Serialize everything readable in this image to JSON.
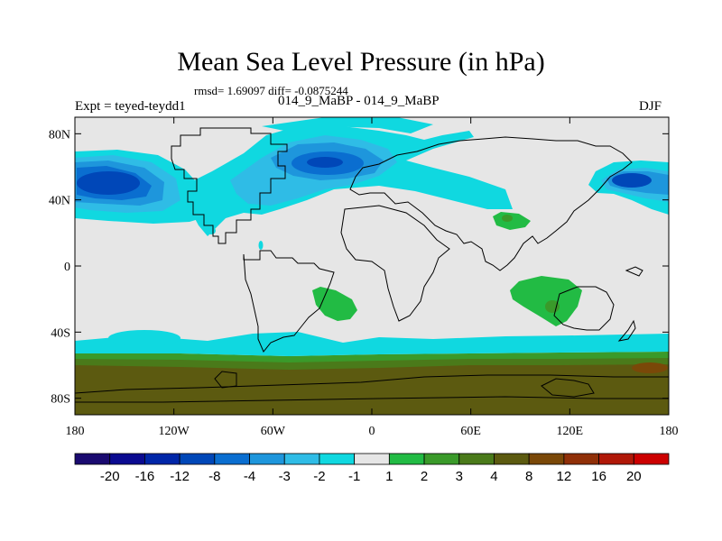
{
  "header": {
    "title": "Mean Sea Level Pressure (in hPa)",
    "stats": "rmsd= 1.69097 diff= -0.0875244",
    "experiment": "Expt = teyed-teydd1",
    "runs": "014_9_MaBP - 014_9_MaBP",
    "season": "DJF"
  },
  "chart_data": {
    "type": "heatmap",
    "title": "Mean Sea Level Pressure (in hPa)",
    "variable": "Mean sea level pressure difference",
    "units": "hPa",
    "projection": "cylindrical equidistant",
    "xlim": [
      -180,
      180
    ],
    "ylim": [
      -90,
      90
    ],
    "x_tick_labels": [
      "180",
      "120W",
      "60W",
      "0",
      "60E",
      "120E",
      "180"
    ],
    "y_tick_labels": [
      "80N",
      "40N",
      "0",
      "40S",
      "80S"
    ],
    "colorbar": {
      "levels": [
        "-20",
        "-16",
        "-12",
        "-8",
        "-4",
        "-3",
        "-2",
        "-1",
        "1",
        "2",
        "3",
        "4",
        "8",
        "12",
        "16",
        "20"
      ],
      "colors": [
        "#1a0a70",
        "#0a0a90",
        "#0026a8",
        "#0047b8",
        "#0a6ed0",
        "#1e96dc",
        "#2fbce6",
        "#10d8e0",
        "#e6e6e6",
        "#22bb44",
        "#3a9a2a",
        "#4a7a1a",
        "#5c5a10",
        "#7a4808",
        "#903008",
        "#b01808",
        "#cc0000"
      ]
    },
    "features": [
      {
        "name": "strong negative anomaly North Pacific",
        "lon": [
          -180,
          -125
        ],
        "lat": [
          22,
          65
        ],
        "min_level": "-12"
      },
      {
        "name": "negative anomaly North Atlantic",
        "lon": [
          -55,
          20
        ],
        "lat": [
          35,
          82
        ],
        "min_level": "-8"
      },
      {
        "name": "negative anomaly northwest Pacific",
        "lon": [
          140,
          180
        ],
        "lat": [
          25,
          62
        ],
        "min_level": "-12"
      },
      {
        "name": "negative band Southern Ocean",
        "lon": [
          -180,
          180
        ],
        "lat": [
          -50,
          -40
        ],
        "min_level": "-2"
      },
      {
        "name": "positive anomaly Indian Ocean",
        "lon": [
          85,
          130
        ],
        "lat": [
          -38,
          -8
        ],
        "max_level": "3"
      },
      {
        "name": "positive anomaly South Atlantic",
        "lon": [
          -35,
          -10
        ],
        "lat": [
          -36,
          -18
        ],
        "max_level": "2"
      },
      {
        "name": "positive anomaly Tibet",
        "lon": [
          74,
          98
        ],
        "lat": [
          28,
          36
        ],
        "max_level": "3"
      },
      {
        "name": "strong positive anomaly Antarctica",
        "lon": [
          -180,
          180
        ],
        "lat": [
          -90,
          -60
        ],
        "max_level": "8"
      }
    ]
  }
}
